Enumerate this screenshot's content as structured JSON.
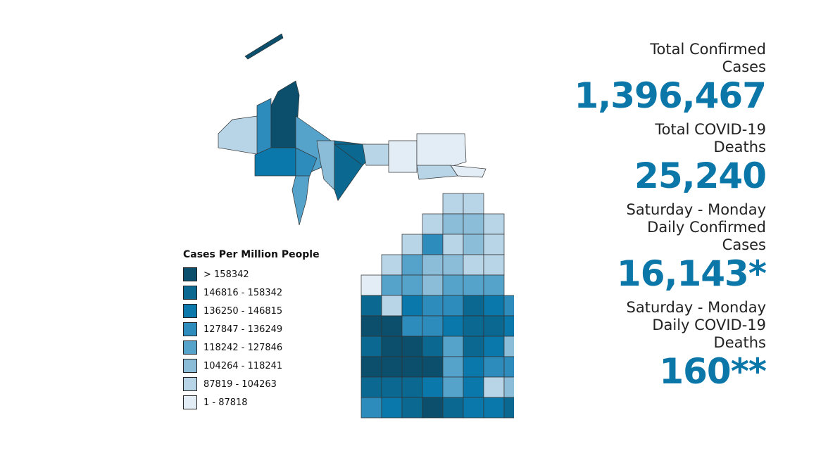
{
  "legend": {
    "title": "Cases Per Million People",
    "items": [
      {
        "label": "> 158342",
        "color": "#0b4f6c"
      },
      {
        "label": "146816 - 158342",
        "color": "#0a6891"
      },
      {
        "label": "136250 - 146815",
        "color": "#0b78ab"
      },
      {
        "label": "127847 - 136249",
        "color": "#2e8cbd"
      },
      {
        "label": "118242 - 127846",
        "color": "#55a3cb"
      },
      {
        "label": "104264 - 118241",
        "color": "#8bbcd8"
      },
      {
        "label": "87819 - 104263",
        "color": "#b8d4e7"
      },
      {
        "label": "1 - 87818",
        "color": "#e3edf6"
      }
    ]
  },
  "stats": [
    {
      "label": "Total Confirmed Cases",
      "value": "1,396,467"
    },
    {
      "label": "Total COVID-19 Deaths",
      "value": "25,240"
    },
    {
      "label": "Saturday - Monday Daily Confirmed Cases",
      "value": "16,143*"
    },
    {
      "label": "Saturday - Monday Daily COVID-19 Deaths",
      "value": "160**"
    }
  ]
}
